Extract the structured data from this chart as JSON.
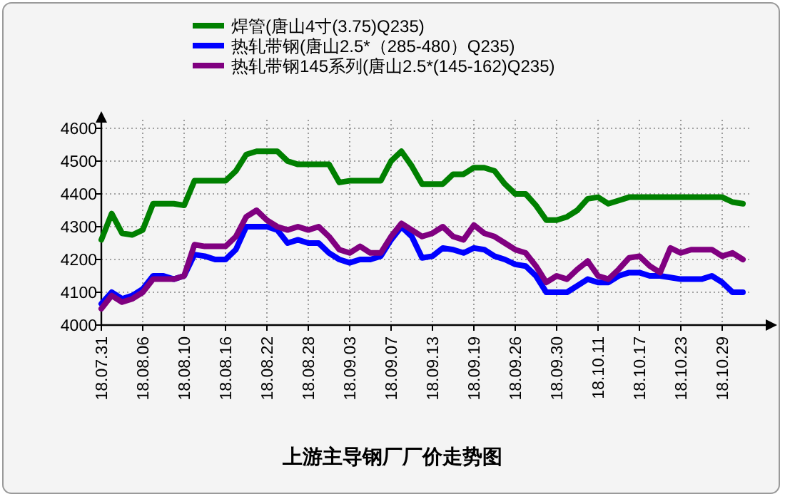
{
  "chart_data": {
    "type": "line",
    "title": "上游主导钢厂厂价走势图",
    "categories": [
      "18.07.31",
      null,
      null,
      null,
      "18.08.06",
      null,
      null,
      null,
      "18.08.10",
      null,
      null,
      null,
      "18.08.16",
      null,
      null,
      null,
      "18.08.22",
      null,
      null,
      null,
      "18.08.28",
      null,
      null,
      null,
      "18.09.03",
      null,
      null,
      null,
      "18.09.07",
      null,
      null,
      null,
      "18.09.13",
      null,
      null,
      null,
      "18.09.19",
      null,
      null,
      null,
      "18.09.26",
      null,
      null,
      null,
      "18.09.30",
      null,
      null,
      null,
      "18.10.11",
      null,
      null,
      null,
      "18.10.17",
      null,
      null,
      null,
      "18.10.23",
      null,
      null,
      null,
      "18.10.29",
      null,
      null
    ],
    "series": [
      {
        "name": "焊管(唐山4寸(3.75)Q235)",
        "color": "#008000",
        "values": [
          4260,
          4340,
          4280,
          4275,
          4290,
          4370,
          4370,
          4370,
          4365,
          4440,
          4440,
          4440,
          4440,
          4470,
          4520,
          4530,
          4530,
          4530,
          4500,
          4490,
          4490,
          4490,
          4490,
          4435,
          4440,
          4440,
          4440,
          4440,
          4500,
          4530,
          4485,
          4430,
          4430,
          4430,
          4460,
          4460,
          4480,
          4480,
          4470,
          4430,
          4400,
          4400,
          4365,
          4320,
          4320,
          4330,
          4350,
          4385,
          4390,
          4370,
          4380,
          4390,
          4390,
          4390,
          4390,
          4390,
          4390,
          4390,
          4390,
          4390,
          4390,
          4375,
          4370
        ]
      },
      {
        "name": "热轧带钢(唐山2.5*（285-480）Q235)",
        "color": "#0000ff",
        "values": [
          4065,
          4100,
          4080,
          4090,
          4110,
          4150,
          4150,
          4140,
          4150,
          4215,
          4210,
          4200,
          4200,
          4230,
          4300,
          4300,
          4300,
          4290,
          4250,
          4260,
          4250,
          4250,
          4220,
          4200,
          4190,
          4200,
          4200,
          4210,
          4260,
          4300,
          4270,
          4205,
          4210,
          4235,
          4230,
          4220,
          4235,
          4230,
          4210,
          4200,
          4185,
          4180,
          4150,
          4100,
          4100,
          4100,
          4120,
          4140,
          4130,
          4130,
          4150,
          4160,
          4160,
          4150,
          4150,
          4145,
          4140,
          4140,
          4140,
          4150,
          4130,
          4100,
          4100
        ]
      },
      {
        "name": "热轧带钢145系列(唐山2.5*(145-162)Q235)",
        "color": "#800080",
        "values": [
          4050,
          4090,
          4070,
          4080,
          4100,
          4140,
          4140,
          4140,
          4150,
          4245,
          4240,
          4240,
          4240,
          4270,
          4330,
          4350,
          4320,
          4300,
          4290,
          4300,
          4290,
          4300,
          4270,
          4230,
          4220,
          4240,
          4220,
          4220,
          4270,
          4310,
          4290,
          4270,
          4280,
          4300,
          4270,
          4260,
          4305,
          4280,
          4270,
          4250,
          4230,
          4220,
          4180,
          4130,
          4150,
          4140,
          4170,
          4195,
          4150,
          4140,
          4170,
          4205,
          4210,
          4180,
          4160,
          4235,
          4220,
          4230,
          4230,
          4230,
          4210,
          4220,
          4200
        ]
      }
    ],
    "ylim": [
      4000,
      4600
    ],
    "yticks": [
      4000,
      4100,
      4200,
      4300,
      4400,
      4500,
      4600
    ],
    "grid": true,
    "legend": "top",
    "marker": "none",
    "line_style": "solid"
  }
}
